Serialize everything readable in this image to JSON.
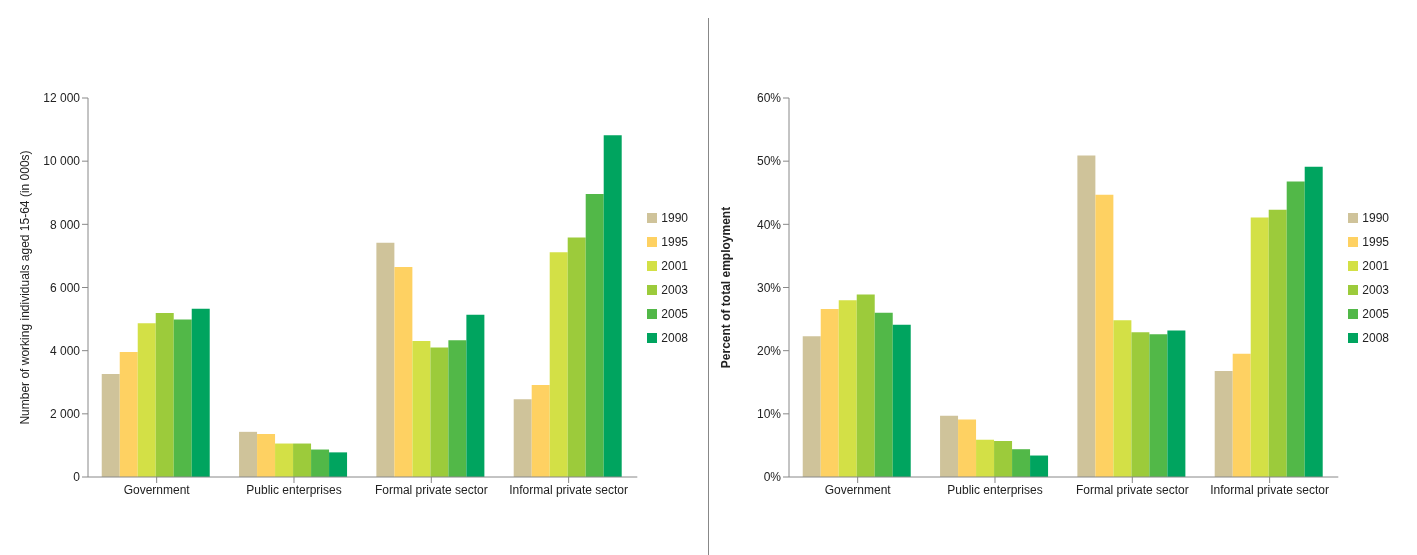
{
  "chart_data": [
    {
      "type": "bar",
      "ylabel": "Number of working individuals aged 15-64 (in 000s)",
      "categories": [
        "Government",
        "Public enterprises",
        "Formal private sector",
        "Informal private sector"
      ],
      "series": [
        {
          "name": "1990",
          "color": "#cfc39a",
          "values": [
            3260,
            1430,
            7420,
            2460
          ]
        },
        {
          "name": "1995",
          "color": "#fed162",
          "values": [
            3960,
            1360,
            6650,
            2910
          ]
        },
        {
          "name": "2001",
          "color": "#d3e046",
          "values": [
            4870,
            1060,
            4310,
            7120
          ]
        },
        {
          "name": "2003",
          "color": "#9ccb3b",
          "values": [
            5190,
            1060,
            4100,
            7580
          ]
        },
        {
          "name": "2005",
          "color": "#52b848",
          "values": [
            4990,
            870,
            4330,
            8960
          ]
        },
        {
          "name": "2008",
          "color": "#00a45f",
          "values": [
            5330,
            780,
            5140,
            10820
          ]
        }
      ],
      "ylim": [
        0,
        12000
      ],
      "yticks": [
        0,
        {
          "value": 2000,
          "label": "2 000"
        },
        {
          "value": 4000,
          "label": "4 000"
        },
        {
          "value": 6000,
          "label": "6 000"
        },
        {
          "value": 8000,
          "label": "8 000"
        },
        {
          "value": 10000,
          "label": "10 000"
        },
        {
          "value": 12000,
          "label": "12 000"
        }
      ],
      "grid": false,
      "legend": "right"
    },
    {
      "type": "bar",
      "ylabel": "Percent of total employment",
      "categories": [
        "Government",
        "Public enterprises",
        "Formal private sector",
        "Informal private sector"
      ],
      "series": [
        {
          "name": "1990",
          "color": "#cfc39a",
          "values": [
            22.3,
            9.7,
            50.9,
            16.8
          ]
        },
        {
          "name": "1995",
          "color": "#fed162",
          "values": [
            26.6,
            9.1,
            44.7,
            19.5
          ]
        },
        {
          "name": "2001",
          "color": "#d3e046",
          "values": [
            28.0,
            5.9,
            24.8,
            41.1
          ]
        },
        {
          "name": "2003",
          "color": "#9ccb3b",
          "values": [
            28.9,
            5.7,
            22.9,
            42.3
          ]
        },
        {
          "name": "2005",
          "color": "#52b848",
          "values": [
            26.0,
            4.4,
            22.6,
            46.8
          ]
        },
        {
          "name": "2008",
          "color": "#00a45f",
          "values": [
            24.1,
            3.4,
            23.2,
            49.1
          ]
        }
      ],
      "ylim": [
        0,
        60
      ],
      "yticks": [
        {
          "value": 0,
          "label": "0%"
        },
        {
          "value": 10,
          "label": "10%"
        },
        {
          "value": 20,
          "label": "20%"
        },
        {
          "value": 30,
          "label": "30%"
        },
        {
          "value": 40,
          "label": "40%"
        },
        {
          "value": 50,
          "label": "50%"
        },
        {
          "value": 60,
          "label": "60%"
        }
      ],
      "grid": false,
      "legend": "right"
    }
  ]
}
